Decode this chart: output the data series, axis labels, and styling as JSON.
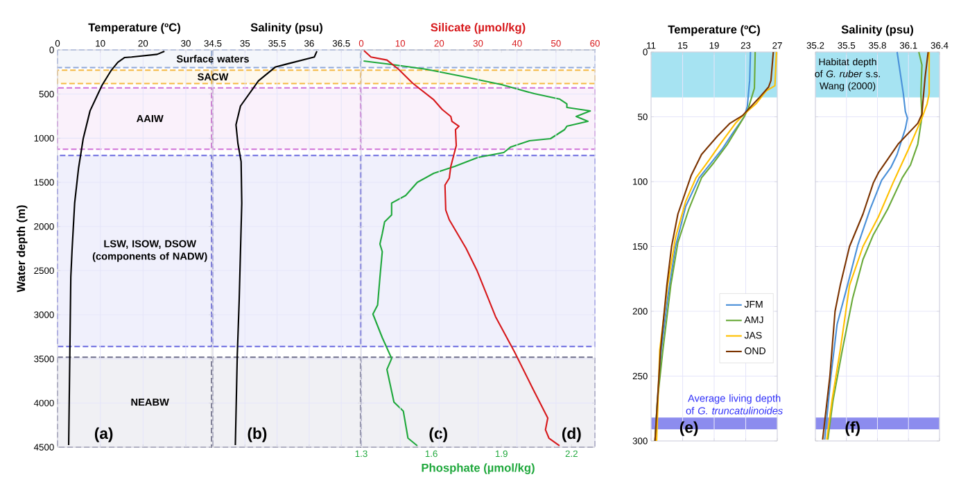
{
  "chart_data": [
    {
      "type": "line",
      "xlabel": "Temperature (ºC)",
      "ylabel": "Water depth (m)",
      "xlim": [
        0,
        36
      ],
      "xticks": [
        0,
        10,
        20,
        30
      ],
      "ylim": [
        4500,
        0
      ],
      "yticks": [
        0,
        500,
        1000,
        1500,
        2000,
        2500,
        3000,
        3500,
        4000,
        4500
      ],
      "grid": true,
      "series": [
        {
          "color": "#000000",
          "x": [
            25,
            23.3,
            17.3,
            15.7,
            14.1,
            12.5,
            10.4,
            7.6,
            6,
            4.9,
            4,
            3.4,
            3.1,
            2.6
          ],
          "values": [
            15,
            50,
            80,
            86,
            140,
            235,
            400,
            690,
            1005,
            1343,
            1735,
            2262,
            2575,
            4476
          ]
        }
      ],
      "bands": [
        {
          "axis": "y",
          "from": 0,
          "to": 200,
          "color": "#8fa8d8"
        },
        {
          "axis": "y",
          "from": 230,
          "to": 380,
          "color": "#f5b841"
        },
        {
          "axis": "y",
          "from": 430,
          "to": 1125,
          "label": "AAIW",
          "color": "#d070d8"
        },
        {
          "axis": "y",
          "from": 1195,
          "to": 3360,
          "label": "LSW, ISOW, DSOW (components of NADW)",
          "color": "#6a6ae0"
        },
        {
          "axis": "y",
          "from": 3480,
          "to": 4500,
          "label": "NEABW",
          "color": "#6e6e8c"
        }
      ],
      "annotations": [
        "(a)"
      ]
    },
    {
      "type": "line",
      "xlabel": "Salinity (psu)",
      "xlim": [
        34.5,
        36.8
      ],
      "xticks": [
        34.5,
        35,
        35.5,
        36,
        36.5
      ],
      "ylim": [
        4500,
        0
      ],
      "yticks": [
        0,
        500,
        1000,
        1500,
        2000,
        2500,
        3000,
        3500,
        4000,
        4500
      ],
      "grid": true,
      "tick_labels": "x",
      "series": [
        {
          "color": "#000000",
          "x": [
            36.12,
            36.08,
            35.65,
            35.47,
            35.21,
            34.93,
            34.86,
            34.89,
            34.94,
            34.95,
            34.91,
            34.88,
            34.85
          ],
          "values": [
            15,
            80,
            160,
            195,
            350,
            636,
            848,
            1060,
            1265,
            1735,
            2835,
            3463,
            4476
          ]
        }
      ],
      "bands": [
        {
          "axis": "y",
          "from": 0,
          "to": 200,
          "label": "Surface waters",
          "color": "#8fa8d8"
        },
        {
          "axis": "y",
          "from": 230,
          "to": 380,
          "label": "SACW",
          "color": "#f5b841"
        },
        {
          "axis": "y",
          "from": 430,
          "to": 1125,
          "color": "#d070d8"
        },
        {
          "axis": "y",
          "from": 1195,
          "to": 3360,
          "color": "#6a6ae0"
        },
        {
          "axis": "y",
          "from": 3480,
          "to": 4500,
          "color": "#6e6e8c"
        }
      ],
      "annotations": [
        "(b)"
      ]
    },
    {
      "type": "line",
      "xlabel": "Phosphate (µmol/kg)",
      "x2label": "Silicate (µmol/kg)",
      "xlim": [
        1.3,
        2.3
      ],
      "xticks": [
        1.3,
        1.6,
        1.9,
        2.2
      ],
      "x2lim": [
        0,
        60
      ],
      "x2ticks": [
        0,
        10,
        20,
        30,
        40,
        50,
        60
      ],
      "ylim": [
        4500,
        0
      ],
      "yticks": [
        0,
        500,
        1000,
        1500,
        2000,
        2500,
        3000,
        3500,
        4000,
        4500
      ],
      "grid": true,
      "tick_labels": "x",
      "series": [
        {
          "color": "#d7191c",
          "axis": "x2",
          "x": [
            0.7,
            2.5,
            6.6,
            9.6,
            13.2,
            18.5,
            20.8,
            23,
            23.3,
            25.1,
            24.2,
            24.4,
            23,
            22.6,
            21.5,
            21.7,
            22.6,
            26.9,
            29.7,
            34.5,
            39.3,
            44,
            47.9,
            47.3,
            48.2,
            50.9
          ],
          "values": [
            8,
            80,
            115,
            220,
            377,
            560,
            675,
            754,
            810,
            864,
            903,
            1084,
            1320,
            1453,
            1531,
            1814,
            1924,
            2246,
            2497,
            3023,
            3416,
            3832,
            4170,
            4303,
            4398,
            4484
          ]
        },
        {
          "color": "#1fa83c",
          "x": [
            1.31,
            1.43,
            1.58,
            1.73,
            1.9,
            2.04,
            2.15,
            2.18,
            2.18,
            2.28,
            2.22,
            2.27,
            2.18,
            2.17,
            2.11,
            2.02,
            1.94,
            1.91,
            1.8,
            1.7,
            1.61,
            1.54,
            1.49,
            1.43,
            1.43,
            1.4,
            1.39,
            1.38,
            1.39,
            1.38,
            1.37,
            1.35,
            1.39,
            1.43,
            1.41,
            1.44,
            1.48,
            1.5,
            1.54
          ],
          "values": [
            126,
            165,
            220,
            298,
            393,
            495,
            558,
            612,
            652,
            691,
            754,
            809,
            864,
            903,
            1005,
            1029,
            1099,
            1162,
            1217,
            1320,
            1398,
            1500,
            1649,
            1735,
            1869,
            1948,
            2081,
            2199,
            2285,
            2576,
            2890,
            2992,
            3259,
            3495,
            3620,
            3989,
            4091,
            4398,
            4484
          ]
        }
      ],
      "bands": [
        {
          "axis": "y",
          "from": 0,
          "to": 200,
          "color": "#8fa8d8"
        },
        {
          "axis": "y",
          "from": 230,
          "to": 380,
          "color": "#f5b841"
        },
        {
          "axis": "y",
          "from": 430,
          "to": 1125,
          "color": "#d070d8"
        },
        {
          "axis": "y",
          "from": 1195,
          "to": 3360,
          "color": "#6a6ae0"
        },
        {
          "axis": "y",
          "from": 3480,
          "to": 4500,
          "color": "#6e6e8c"
        }
      ],
      "annotations": [
        "(c)",
        "(d)"
      ]
    },
    {
      "type": "line",
      "xlabel": "Temperature (ºC)",
      "xlim": [
        11,
        27
      ],
      "xticks": [
        11,
        15,
        19,
        23,
        27
      ],
      "ylim": [
        300,
        0
      ],
      "yticks": [
        0,
        50,
        100,
        150,
        200,
        250,
        300
      ],
      "grid": true,
      "legend": "bottom right",
      "series": [
        {
          "name": "JFM",
          "color": "#4a90d9",
          "x": [
            23.6,
            23.5,
            23.2,
            22.8,
            21.3,
            20,
            17.1,
            15.4,
            14.1,
            13.1,
            12.3,
            11.8,
            11.5
          ],
          "values": [
            0,
            22,
            42,
            50,
            63,
            75,
            97,
            119,
            150,
            190,
            230,
            269,
            300
          ]
        },
        {
          "name": "AMJ",
          "color": "#6aaa3a",
          "x": [
            24.2,
            24.1,
            23.3,
            22.8,
            21.7,
            20.7,
            19,
            17.4,
            15.8,
            14.4,
            13.5,
            12.5,
            11.8,
            11.5
          ],
          "values": [
            0,
            28,
            44,
            50,
            61,
            71,
            85,
            97,
            121,
            147,
            180,
            230,
            269,
            300
          ]
        },
        {
          "name": "JAS",
          "color": "#ffc000",
          "x": [
            26.9,
            26.7,
            25.6,
            24.3,
            22.8,
            21.7,
            20,
            18.4,
            16.7,
            15.4,
            14.1,
            13.1,
            12.1,
            11.7
          ],
          "values": [
            0,
            26,
            30,
            40,
            48,
            55,
            69,
            83,
            97,
            115,
            143,
            180,
            230,
            300
          ]
        },
        {
          "name": "OND",
          "color": "#7b3300",
          "x": [
            26.5,
            26.2,
            25.9,
            24.6,
            22.6,
            21,
            19.4,
            17.4,
            16.1,
            14.4,
            13.6,
            13,
            12.2,
            11.5
          ],
          "values": [
            0,
            22,
            27,
            36,
            49,
            55,
            65,
            79,
            95,
            125,
            150,
            180,
            230,
            300
          ]
        }
      ],
      "bands": [
        {
          "axis": "y",
          "from": 0,
          "to": 35,
          "color": "#a6e3f2"
        },
        {
          "axis": "y",
          "from": 282,
          "to": 291,
          "label": "Average living depth of *G. truncatulinoides*",
          "color": "#8c8cee"
        }
      ],
      "annotations": [
        "(e)"
      ]
    },
    {
      "type": "line",
      "xlabel": "Salinity (psu)",
      "xlim": [
        35.2,
        36.4
      ],
      "xticks": [
        35.2,
        35.5,
        35.8,
        36.1,
        36.4
      ],
      "ylim": [
        300,
        0
      ],
      "yticks": [
        0,
        50,
        100,
        150,
        200,
        250,
        300
      ],
      "grid": true,
      "tick_labels": "x",
      "series": [
        {
          "color": "#4a90d9",
          "x": [
            35.99,
            36.02,
            36.05,
            36.07,
            36.09,
            36.07,
            36.03,
            35.99,
            35.93,
            35.84,
            35.73,
            35.61,
            35.51,
            35.41,
            35.35,
            35.29
          ],
          "values": [
            0,
            16,
            32,
            46,
            51,
            59,
            69,
            79,
            89,
            99,
            121,
            149,
            180,
            210,
            250,
            299
          ]
        },
        {
          "color": "#6aaa3a",
          "x": [
            36.2,
            36.23,
            36.22,
            36.23,
            36.19,
            36.12,
            36.04,
            35.9,
            35.76,
            35.66,
            35.56,
            35.46,
            35.37,
            35.32
          ],
          "values": [
            0,
            10,
            32,
            50,
            71,
            87,
            97,
            121,
            141,
            160,
            190,
            230,
            269,
            299
          ]
        },
        {
          "color": "#ffc000",
          "x": [
            36.3,
            36.3,
            36.28,
            36.23,
            36.1,
            35.95,
            35.81,
            35.66,
            35.53,
            35.44,
            35.36,
            35.31
          ],
          "values": [
            0,
            32,
            40,
            51,
            75,
            101,
            127,
            150,
            180,
            230,
            269,
            299
          ]
        },
        {
          "color": "#7b3300",
          "x": [
            36.29,
            36.26,
            36.24,
            36.23,
            36.19,
            36.0,
            35.88,
            35.81,
            35.76,
            35.66,
            35.53,
            35.44,
            35.39,
            35.34,
            35.27
          ],
          "values": [
            0,
            20,
            38,
            48,
            55,
            71,
            85,
            93,
            101,
            125,
            150,
            180,
            200,
            250,
            299
          ]
        }
      ],
      "bands": [
        {
          "axis": "y",
          "from": 0,
          "to": 35,
          "label": "Habitat depth of *G. ruber* s.s. Wang (2000)",
          "color": "#a6e3f2"
        },
        {
          "axis": "y",
          "from": 282,
          "to": 291,
          "color": "#8c8cee"
        }
      ],
      "annotations": [
        "(f)"
      ]
    }
  ]
}
